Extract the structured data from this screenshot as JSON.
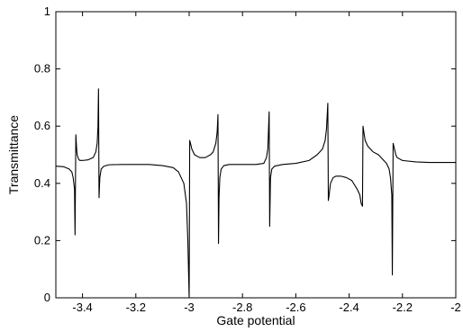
{
  "chart_data": {
    "type": "line",
    "title": "",
    "xlabel": "Gate potential",
    "ylabel": "Transmittance",
    "xlim": [
      -3.5,
      -2.0
    ],
    "ylim": [
      0,
      1
    ],
    "xticks": [
      -3.4,
      -3.2,
      -3.0,
      -2.8,
      -2.6,
      -2.4,
      -2.2,
      -2.0
    ],
    "xtick_labels": [
      "-3.4",
      "-3.2",
      "-3",
      "-2.8",
      "-2.6",
      "-2.4",
      "-2.2",
      "-2"
    ],
    "yticks": [
      0,
      0.2,
      0.4,
      0.6,
      0.8,
      1.0
    ],
    "ytick_labels": [
      "0",
      "0.2",
      "0.4",
      "0.6",
      "0.8",
      "1"
    ],
    "grid": false,
    "legend": "none",
    "line_color": "#000000",
    "series": [
      {
        "x": [
          -3.5,
          -3.47,
          -3.45,
          -3.44,
          -3.435,
          -3.43,
          -3.428,
          -3.425,
          -3.422,
          -3.42,
          -3.415,
          -3.41,
          -3.4,
          -3.38,
          -3.36,
          -3.35,
          -3.345,
          -3.342,
          -3.34,
          -3.338,
          -3.335,
          -3.33,
          -3.32,
          -3.3,
          -3.25,
          -3.2,
          -3.15,
          -3.1,
          -3.06,
          -3.04,
          -3.02,
          -3.01,
          -3.005,
          -3.0,
          -2.998,
          -2.995,
          -2.99,
          -2.98,
          -2.96,
          -2.94,
          -2.92,
          -2.91,
          -2.9,
          -2.895,
          -2.892,
          -2.89,
          -2.888,
          -2.885,
          -2.88,
          -2.87,
          -2.85,
          -2.8,
          -2.75,
          -2.72,
          -2.71,
          -2.705,
          -2.7,
          -2.698,
          -2.695,
          -2.69,
          -2.68,
          -2.65,
          -2.6,
          -2.55,
          -2.52,
          -2.5,
          -2.49,
          -2.485,
          -2.48,
          -2.478,
          -2.475,
          -2.47,
          -2.46,
          -2.45,
          -2.43,
          -2.41,
          -2.39,
          -2.37,
          -2.36,
          -2.355,
          -2.35,
          -2.348,
          -2.345,
          -2.34,
          -2.33,
          -2.31,
          -2.29,
          -2.27,
          -2.26,
          -2.25,
          -2.245,
          -2.24,
          -2.238,
          -2.235,
          -2.23,
          -2.225,
          -2.22,
          -2.2,
          -2.15,
          -2.1,
          -2.05,
          -2.0
        ],
        "y": [
          0.46,
          0.458,
          0.45,
          0.44,
          0.42,
          0.38,
          0.22,
          0.57,
          0.52,
          0.5,
          0.485,
          0.48,
          0.48,
          0.482,
          0.49,
          0.51,
          0.54,
          0.6,
          0.73,
          0.35,
          0.42,
          0.45,
          0.46,
          0.465,
          0.466,
          0.466,
          0.466,
          0.462,
          0.455,
          0.44,
          0.4,
          0.33,
          0.2,
          0.0,
          0.55,
          0.54,
          0.52,
          0.5,
          0.49,
          0.49,
          0.5,
          0.51,
          0.54,
          0.58,
          0.64,
          0.19,
          0.35,
          0.42,
          0.45,
          0.462,
          0.466,
          0.466,
          0.466,
          0.47,
          0.49,
          0.52,
          0.65,
          0.25,
          0.42,
          0.45,
          0.46,
          0.466,
          0.47,
          0.48,
          0.5,
          0.52,
          0.55,
          0.59,
          0.68,
          0.34,
          0.36,
          0.4,
          0.42,
          0.425,
          0.425,
          0.42,
          0.41,
          0.38,
          0.36,
          0.33,
          0.32,
          0.6,
          0.58,
          0.55,
          0.53,
          0.51,
          0.5,
          0.48,
          0.47,
          0.45,
          0.42,
          0.36,
          0.08,
          0.54,
          0.52,
          0.5,
          0.49,
          0.48,
          0.475,
          0.473,
          0.473,
          0.473
        ]
      }
    ]
  }
}
